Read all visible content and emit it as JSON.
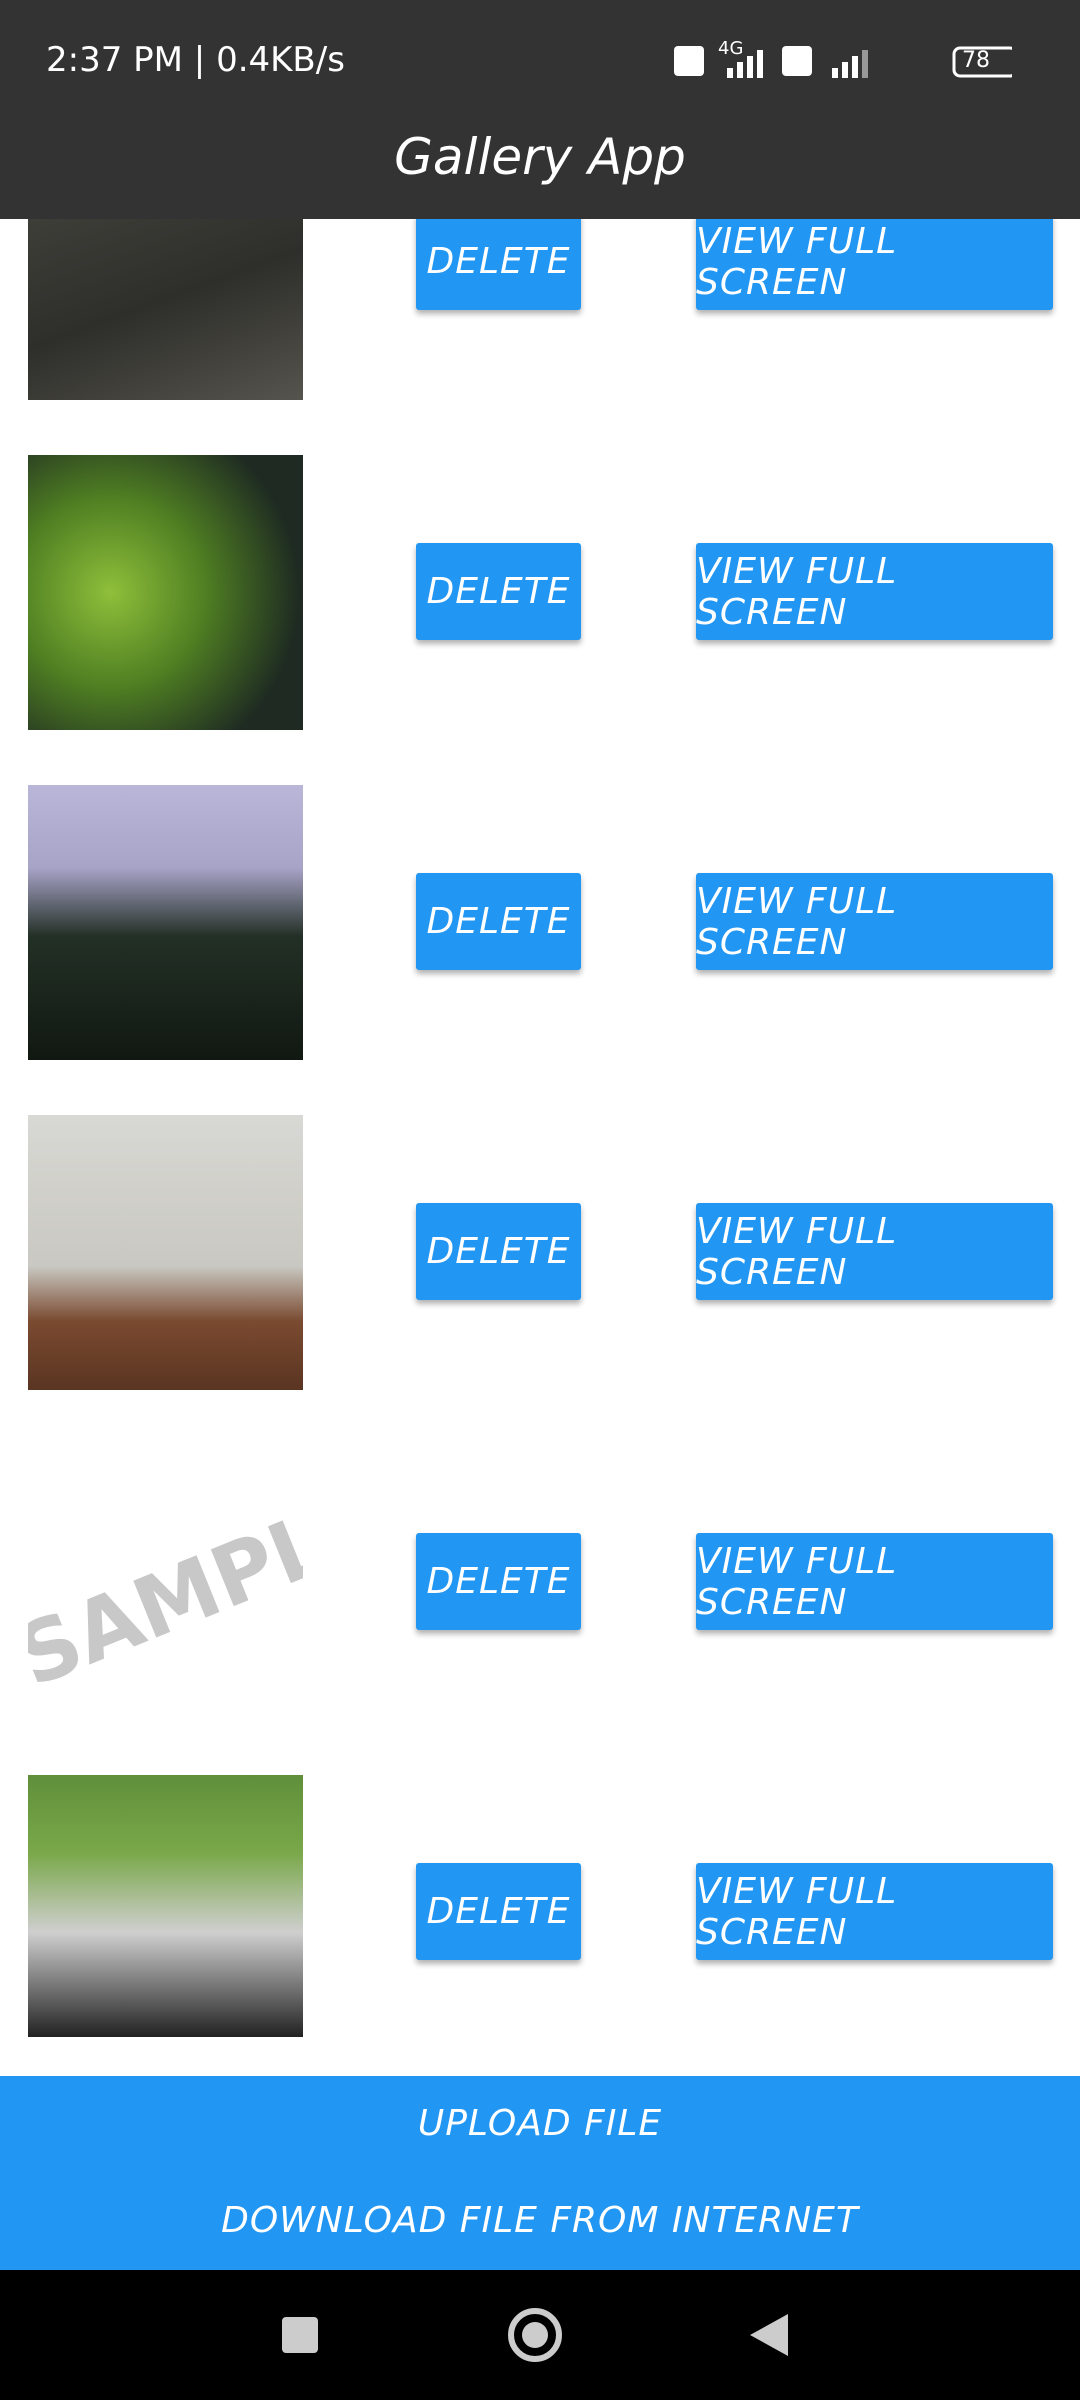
{
  "status_bar": {
    "time_speed": "2:37 PM | 0.4KB/s",
    "network": "4G",
    "battery": "78"
  },
  "header": {
    "title": "Gallery App"
  },
  "items": [
    {
      "delete": "DELETE",
      "view": "VIEW FULL SCREEN"
    },
    {
      "delete": "DELETE",
      "view": "VIEW FULL SCREEN"
    },
    {
      "delete": "DELETE",
      "view": "VIEW FULL SCREEN"
    },
    {
      "delete": "DELETE",
      "view": "VIEW FULL SCREEN"
    },
    {
      "delete": "DELETE",
      "view": "VIEW FULL SCREEN",
      "image_text": "SAMPLE"
    },
    {
      "delete": "DELETE",
      "view": "VIEW FULL SCREEN"
    }
  ],
  "actions": {
    "upload": "UPLOAD FILE",
    "download": "DOWNLOAD FILE FROM INTERNET"
  }
}
